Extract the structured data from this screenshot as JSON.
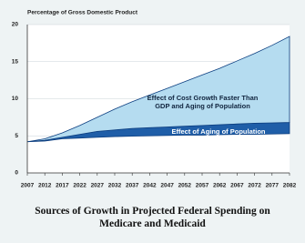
{
  "chart_data": {
    "type": "stacked_area",
    "y_label": "Percentage of Gross Domestic Product",
    "title": "Sources of Growth in Projected Federal Spending on Medicare and Medicaid",
    "x": [
      2007,
      2012,
      2017,
      2022,
      2027,
      2032,
      2037,
      2042,
      2047,
      2052,
      2057,
      2062,
      2067,
      2072,
      2077,
      2082
    ],
    "series": [
      {
        "color": "#ffffff",
        "values": [
          4.2,
          4.3,
          4.6,
          4.7,
          4.8,
          4.9,
          4.95,
          5.0,
          5.05,
          5.1,
          5.1,
          5.15,
          5.2,
          5.2,
          5.25,
          5.3
        ]
      },
      {
        "name": "Effect of Aging of Population",
        "color": "#1f5ea8",
        "values": [
          0,
          0.1,
          0.2,
          0.5,
          0.8,
          0.9,
          1.05,
          1.1,
          1.15,
          1.2,
          1.3,
          1.35,
          1.4,
          1.5,
          1.5,
          1.5
        ]
      },
      {
        "name": "Effect of Cost Growth Faster Than GDP and Aging of Population",
        "color": "#b5dcf0",
        "values": [
          0,
          0.2,
          0.6,
          1.2,
          1.9,
          2.8,
          3.6,
          4.4,
          5.2,
          6.0,
          6.8,
          7.6,
          8.5,
          9.4,
          10.45,
          11.6
        ]
      }
    ],
    "xlim": [
      2007,
      2082
    ],
    "xticks": [
      2007,
      2012,
      2017,
      2022,
      2027,
      2032,
      2037,
      2042,
      2047,
      2052,
      2057,
      2062,
      2067,
      2072,
      2077,
      2082
    ],
    "ylim": [
      0,
      20
    ],
    "yticks": [
      0,
      5,
      10,
      15,
      20
    ],
    "grid": true
  }
}
